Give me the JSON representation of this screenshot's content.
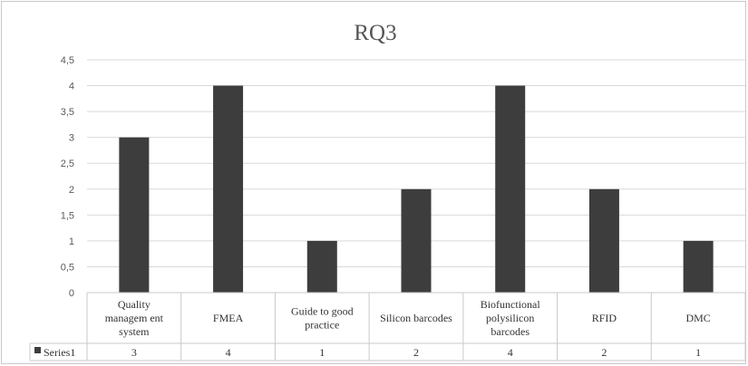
{
  "chart_data": {
    "type": "bar",
    "title": "RQ3",
    "categories": [
      [
        "Quality",
        "managem ent",
        "system"
      ],
      [
        "FMEA"
      ],
      [
        "Guide to good",
        "practice"
      ],
      [
        "Silicon barcodes"
      ],
      [
        "Biofunctional",
        "polysilicon",
        "barcodes"
      ],
      [
        "RFID"
      ],
      [
        "DMC"
      ]
    ],
    "series": [
      {
        "name": "Series1",
        "values": [
          3,
          4,
          1,
          2,
          4,
          2,
          1
        ]
      }
    ],
    "ylim": [
      0,
      4.5
    ],
    "yticks": [
      "0",
      "0,5",
      "1",
      "1,5",
      "2",
      "2,5",
      "3",
      "3,5",
      "4",
      "4,5"
    ],
    "grid": true,
    "data_table": true,
    "bar_color": "#3d3d3d",
    "grid_color": "#d9d9d9"
  }
}
